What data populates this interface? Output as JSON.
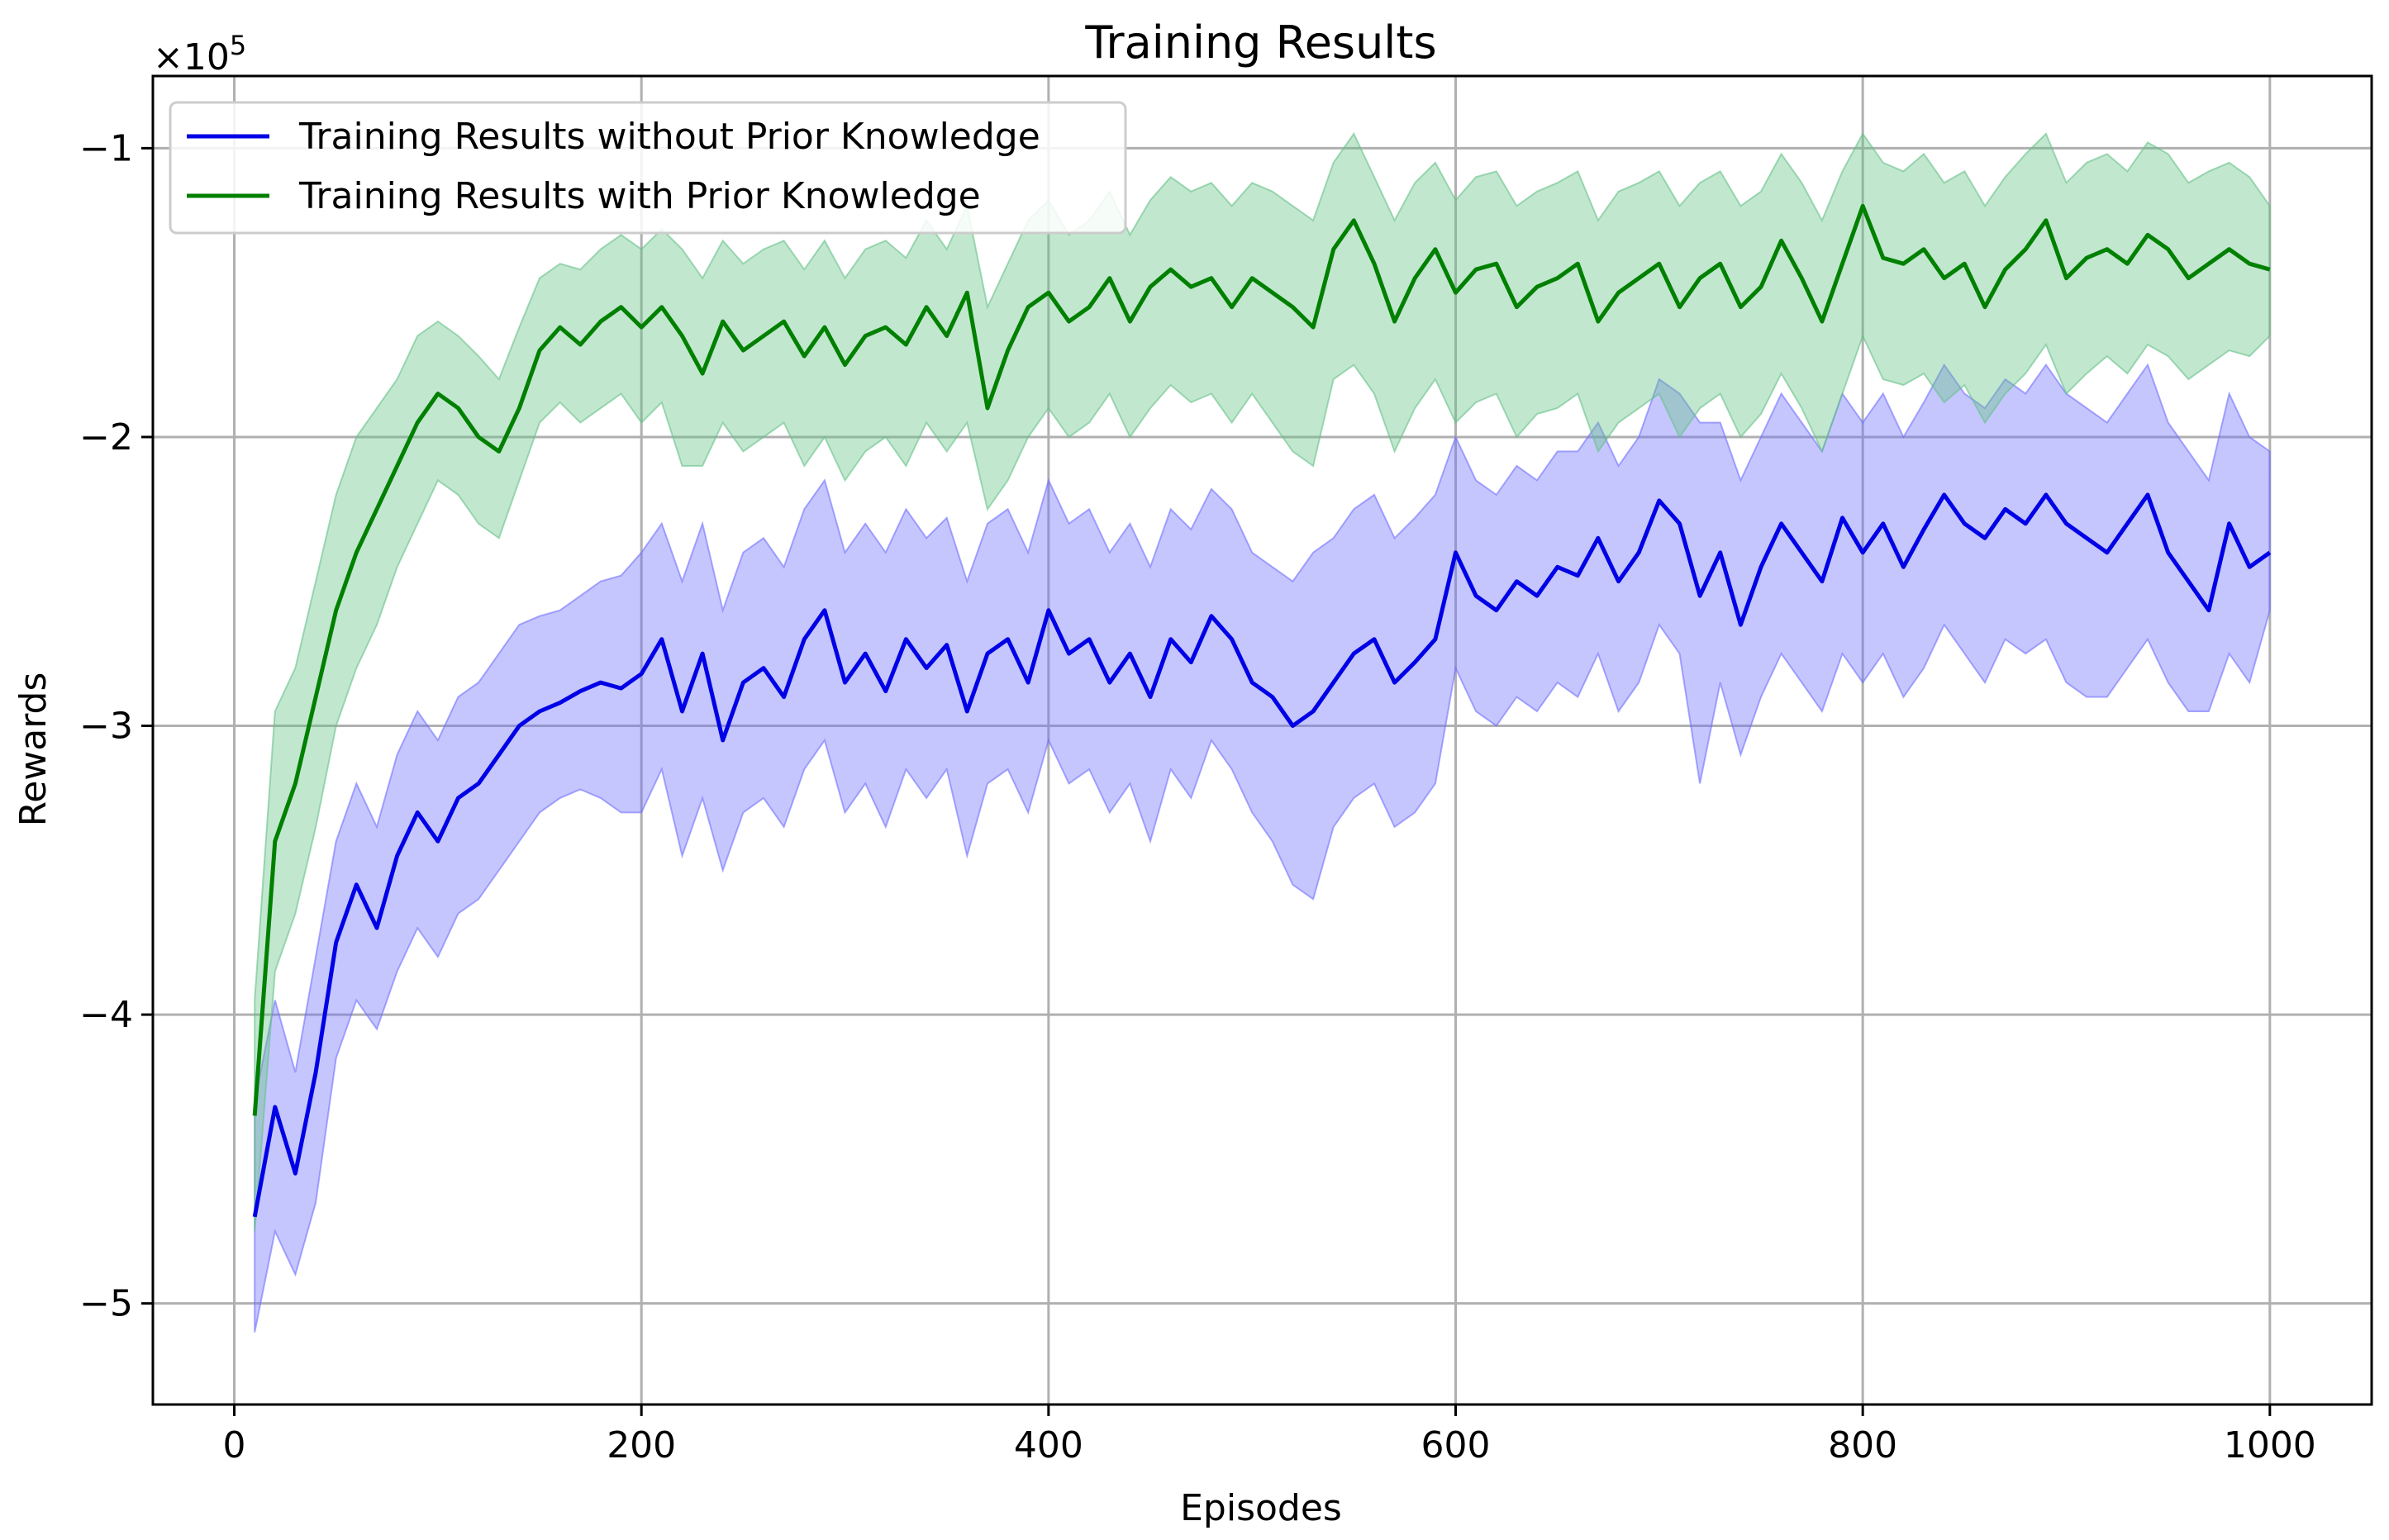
{
  "chart_data": {
    "type": "line",
    "title": "Training Results",
    "xlabel": "Episodes",
    "ylabel": "Rewards",
    "y_scale_label": "×10",
    "y_scale_exponent": "5",
    "xlim": [
      -40,
      1050
    ],
    "ylim": [
      -5.35,
      -0.75
    ],
    "x_ticks": [
      0,
      200,
      400,
      600,
      800,
      1000
    ],
    "x_tick_labels": [
      "0",
      "200",
      "400",
      "600",
      "800",
      "1000"
    ],
    "y_ticks": [
      -5,
      -4,
      -3,
      -2,
      -1
    ],
    "y_tick_labels": [
      "−5",
      "−4",
      "−3",
      "−2",
      "−1"
    ],
    "grid": true,
    "legend_position": "top-left",
    "series": [
      {
        "name": "Training Results without Prior Knowledge",
        "color": "#0000e6",
        "band_color": "#7070ff",
        "x": [
          10,
          20,
          30,
          40,
          50,
          60,
          70,
          80,
          90,
          100,
          110,
          120,
          130,
          140,
          150,
          160,
          170,
          180,
          190,
          200,
          210,
          220,
          230,
          240,
          250,
          260,
          270,
          280,
          290,
          300,
          310,
          320,
          330,
          340,
          350,
          360,
          370,
          380,
          390,
          400,
          410,
          420,
          430,
          440,
          450,
          460,
          470,
          480,
          490,
          500,
          510,
          520,
          530,
          540,
          550,
          560,
          570,
          580,
          590,
          600,
          610,
          620,
          630,
          640,
          650,
          660,
          670,
          680,
          690,
          700,
          710,
          720,
          730,
          740,
          750,
          760,
          770,
          780,
          790,
          800,
          810,
          820,
          830,
          840,
          850,
          860,
          870,
          880,
          890,
          900,
          910,
          920,
          930,
          940,
          950,
          960,
          970,
          980,
          990,
          1000
        ],
        "y": [
          -4.7,
          -4.32,
          -4.55,
          -4.2,
          -3.75,
          -3.55,
          -3.7,
          -3.45,
          -3.3,
          -3.4,
          -3.25,
          -3.2,
          -3.1,
          -3.0,
          -2.95,
          -2.92,
          -2.88,
          -2.85,
          -2.87,
          -2.82,
          -2.7,
          -2.95,
          -2.75,
          -3.05,
          -2.85,
          -2.8,
          -2.9,
          -2.7,
          -2.6,
          -2.85,
          -2.75,
          -2.88,
          -2.7,
          -2.8,
          -2.72,
          -2.95,
          -2.75,
          -2.7,
          -2.85,
          -2.6,
          -2.75,
          -2.7,
          -2.85,
          -2.75,
          -2.9,
          -2.7,
          -2.78,
          -2.62,
          -2.7,
          -2.85,
          -2.9,
          -3.0,
          -2.95,
          -2.85,
          -2.75,
          -2.7,
          -2.85,
          -2.78,
          -2.7,
          -2.4,
          -2.55,
          -2.6,
          -2.5,
          -2.55,
          -2.45,
          -2.48,
          -2.35,
          -2.5,
          -2.4,
          -2.22,
          -2.3,
          -2.55,
          -2.4,
          -2.65,
          -2.45,
          -2.3,
          -2.4,
          -2.5,
          -2.28,
          -2.4,
          -2.3,
          -2.45,
          -2.32,
          -2.2,
          -2.3,
          -2.35,
          -2.25,
          -2.3,
          -2.2,
          -2.3,
          -2.35,
          -2.4,
          -2.3,
          -2.2,
          -2.4,
          -2.5,
          -2.6,
          -2.3,
          -2.45,
          -2.4
        ],
        "band_low": [
          -5.1,
          -4.75,
          -4.9,
          -4.65,
          -4.15,
          -3.95,
          -4.05,
          -3.85,
          -3.7,
          -3.8,
          -3.65,
          -3.6,
          -3.5,
          -3.4,
          -3.3,
          -3.25,
          -3.22,
          -3.25,
          -3.3,
          -3.3,
          -3.15,
          -3.45,
          -3.25,
          -3.5,
          -3.3,
          -3.25,
          -3.35,
          -3.15,
          -3.05,
          -3.3,
          -3.2,
          -3.35,
          -3.15,
          -3.25,
          -3.15,
          -3.45,
          -3.2,
          -3.15,
          -3.3,
          -3.05,
          -3.2,
          -3.15,
          -3.3,
          -3.2,
          -3.4,
          -3.15,
          -3.25,
          -3.05,
          -3.15,
          -3.3,
          -3.4,
          -3.55,
          -3.6,
          -3.35,
          -3.25,
          -3.2,
          -3.35,
          -3.3,
          -3.2,
          -2.8,
          -2.95,
          -3.0,
          -2.9,
          -2.95,
          -2.85,
          -2.9,
          -2.75,
          -2.95,
          -2.85,
          -2.65,
          -2.75,
          -3.2,
          -2.85,
          -3.1,
          -2.9,
          -2.75,
          -2.85,
          -2.95,
          -2.75,
          -2.85,
          -2.75,
          -2.9,
          -2.8,
          -2.65,
          -2.75,
          -2.85,
          -2.7,
          -2.75,
          -2.7,
          -2.85,
          -2.9,
          -2.9,
          -2.8,
          -2.7,
          -2.85,
          -2.95,
          -2.95,
          -2.75,
          -2.85,
          -2.6
        ],
        "band_high": [
          -4.3,
          -3.95,
          -4.2,
          -3.8,
          -3.4,
          -3.2,
          -3.35,
          -3.1,
          -2.95,
          -3.05,
          -2.9,
          -2.85,
          -2.75,
          -2.65,
          -2.62,
          -2.6,
          -2.55,
          -2.5,
          -2.48,
          -2.4,
          -2.3,
          -2.5,
          -2.3,
          -2.6,
          -2.4,
          -2.35,
          -2.45,
          -2.25,
          -2.15,
          -2.4,
          -2.3,
          -2.4,
          -2.25,
          -2.35,
          -2.28,
          -2.5,
          -2.3,
          -2.25,
          -2.4,
          -2.15,
          -2.3,
          -2.25,
          -2.4,
          -2.3,
          -2.45,
          -2.25,
          -2.32,
          -2.18,
          -2.25,
          -2.4,
          -2.45,
          -2.5,
          -2.4,
          -2.35,
          -2.25,
          -2.2,
          -2.35,
          -2.28,
          -2.2,
          -2.0,
          -2.15,
          -2.2,
          -2.1,
          -2.15,
          -2.05,
          -2.05,
          -1.95,
          -2.1,
          -2.0,
          -1.8,
          -1.85,
          -1.95,
          -1.95,
          -2.15,
          -2.0,
          -1.85,
          -1.95,
          -2.05,
          -1.85,
          -1.95,
          -1.85,
          -2.0,
          -1.88,
          -1.75,
          -1.85,
          -1.9,
          -1.8,
          -1.85,
          -1.75,
          -1.85,
          -1.9,
          -1.95,
          -1.85,
          -1.75,
          -1.95,
          -2.05,
          -2.15,
          -1.85,
          -2.0,
          -2.05
        ]
      },
      {
        "name": "Training Results with Prior Knowledge",
        "color": "#008000",
        "band_color": "#66c288",
        "x": [
          10,
          20,
          30,
          40,
          50,
          60,
          70,
          80,
          90,
          100,
          110,
          120,
          130,
          140,
          150,
          160,
          170,
          180,
          190,
          200,
          210,
          220,
          230,
          240,
          250,
          260,
          270,
          280,
          290,
          300,
          310,
          320,
          330,
          340,
          350,
          360,
          370,
          380,
          390,
          400,
          410,
          420,
          430,
          440,
          450,
          460,
          470,
          480,
          490,
          500,
          510,
          520,
          530,
          540,
          550,
          560,
          570,
          580,
          590,
          600,
          610,
          620,
          630,
          640,
          650,
          660,
          670,
          680,
          690,
          700,
          710,
          720,
          730,
          740,
          750,
          760,
          770,
          780,
          790,
          800,
          810,
          820,
          830,
          840,
          850,
          860,
          870,
          880,
          890,
          900,
          910,
          920,
          930,
          940,
          950,
          960,
          970,
          980,
          990,
          1000
        ],
        "y": [
          -4.35,
          -3.4,
          -3.2,
          -2.9,
          -2.6,
          -2.4,
          -2.25,
          -2.1,
          -1.95,
          -1.85,
          -1.9,
          -2.0,
          -2.05,
          -1.9,
          -1.7,
          -1.62,
          -1.68,
          -1.6,
          -1.55,
          -1.62,
          -1.55,
          -1.65,
          -1.78,
          -1.6,
          -1.7,
          -1.65,
          -1.6,
          -1.72,
          -1.62,
          -1.75,
          -1.65,
          -1.62,
          -1.68,
          -1.55,
          -1.65,
          -1.5,
          -1.9,
          -1.7,
          -1.55,
          -1.5,
          -1.6,
          -1.55,
          -1.45,
          -1.6,
          -1.48,
          -1.42,
          -1.48,
          -1.45,
          -1.55,
          -1.45,
          -1.5,
          -1.55,
          -1.62,
          -1.35,
          -1.25,
          -1.4,
          -1.6,
          -1.45,
          -1.35,
          -1.5,
          -1.42,
          -1.4,
          -1.55,
          -1.48,
          -1.45,
          -1.4,
          -1.6,
          -1.5,
          -1.45,
          -1.4,
          -1.55,
          -1.45,
          -1.4,
          -1.55,
          -1.48,
          -1.32,
          -1.45,
          -1.6,
          -1.4,
          -1.2,
          -1.38,
          -1.4,
          -1.35,
          -1.45,
          -1.4,
          -1.55,
          -1.42,
          -1.35,
          -1.25,
          -1.45,
          -1.38,
          -1.35,
          -1.4,
          -1.3,
          -1.35,
          -1.45,
          -1.4,
          -1.35,
          -1.4,
          -1.42
        ],
        "band_low": [
          -4.75,
          -3.85,
          -3.65,
          -3.35,
          -3.0,
          -2.8,
          -2.65,
          -2.45,
          -2.3,
          -2.15,
          -2.2,
          -2.3,
          -2.35,
          -2.15,
          -1.95,
          -1.88,
          -1.95,
          -1.9,
          -1.85,
          -1.95,
          -1.88,
          -2.1,
          -2.1,
          -1.95,
          -2.05,
          -2.0,
          -1.95,
          -2.1,
          -2.0,
          -2.15,
          -2.05,
          -2.0,
          -2.1,
          -1.95,
          -2.05,
          -1.95,
          -2.25,
          -2.15,
          -2.0,
          -1.9,
          -2.0,
          -1.95,
          -1.85,
          -2.0,
          -1.9,
          -1.82,
          -1.88,
          -1.85,
          -1.95,
          -1.85,
          -1.95,
          -2.05,
          -2.1,
          -1.8,
          -1.75,
          -1.85,
          -2.05,
          -1.9,
          -1.8,
          -1.95,
          -1.88,
          -1.85,
          -2.0,
          -1.92,
          -1.9,
          -1.85,
          -2.05,
          -1.95,
          -1.9,
          -1.85,
          -2.0,
          -1.9,
          -1.85,
          -2.0,
          -1.92,
          -1.78,
          -1.9,
          -2.05,
          -1.85,
          -1.65,
          -1.8,
          -1.82,
          -1.78,
          -1.88,
          -1.82,
          -1.95,
          -1.85,
          -1.78,
          -1.68,
          -1.85,
          -1.78,
          -1.72,
          -1.78,
          -1.68,
          -1.72,
          -1.8,
          -1.75,
          -1.7,
          -1.72,
          -1.65
        ],
        "band_high": [
          -3.95,
          -2.95,
          -2.8,
          -2.5,
          -2.2,
          -2.0,
          -1.9,
          -1.8,
          -1.65,
          -1.6,
          -1.65,
          -1.72,
          -1.8,
          -1.62,
          -1.45,
          -1.4,
          -1.42,
          -1.35,
          -1.3,
          -1.35,
          -1.28,
          -1.35,
          -1.45,
          -1.32,
          -1.4,
          -1.35,
          -1.32,
          -1.42,
          -1.32,
          -1.45,
          -1.35,
          -1.32,
          -1.38,
          -1.25,
          -1.35,
          -1.2,
          -1.55,
          -1.4,
          -1.25,
          -1.18,
          -1.3,
          -1.25,
          -1.15,
          -1.3,
          -1.18,
          -1.1,
          -1.15,
          -1.12,
          -1.2,
          -1.12,
          -1.15,
          -1.2,
          -1.25,
          -1.05,
          -0.95,
          -1.1,
          -1.25,
          -1.12,
          -1.05,
          -1.18,
          -1.1,
          -1.08,
          -1.2,
          -1.15,
          -1.12,
          -1.08,
          -1.25,
          -1.15,
          -1.12,
          -1.08,
          -1.2,
          -1.12,
          -1.08,
          -1.2,
          -1.15,
          -1.02,
          -1.12,
          -1.25,
          -1.08,
          -0.95,
          -1.05,
          -1.08,
          -1.02,
          -1.12,
          -1.08,
          -1.2,
          -1.1,
          -1.02,
          -0.95,
          -1.12,
          -1.05,
          -1.02,
          -1.08,
          -0.98,
          -1.02,
          -1.12,
          -1.08,
          -1.05,
          -1.1,
          -1.2
        ]
      }
    ]
  }
}
